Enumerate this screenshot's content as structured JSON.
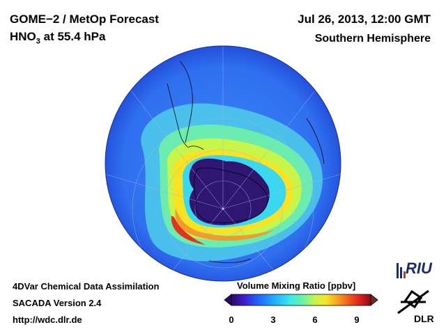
{
  "header": {
    "title_left": "GOME−2 / MetOp Forecast",
    "subtitle_left_pre": "HNO",
    "subtitle_left_sub": "3",
    "subtitle_left_post": " at 55.4 hPa",
    "title_right": "Jul 26, 2013, 12:00 GMT",
    "subtitle_right": "Southern Hemisphere"
  },
  "footer": {
    "line1": "4DVar Chemical Data Assimilation",
    "line2": "SACADA Version 2.4",
    "line3": "http://wdc.dlr.de"
  },
  "colorbar": {
    "title": "Volume Mixing Ratio [ppbv]",
    "ticks": [
      "0",
      "3",
      "6",
      "9"
    ],
    "range": [
      0,
      10
    ],
    "colors": [
      "#2a0a63",
      "#3f1bd1",
      "#1e6bff",
      "#22b5ff",
      "#3be8e8",
      "#6ff2a0",
      "#c8f54a",
      "#f7e324",
      "#f7a31c",
      "#f0561a",
      "#d91c1c",
      "#8a0c16"
    ]
  },
  "logos": {
    "riu": "RIU",
    "dlr": "DLR"
  },
  "map_colors": {
    "background_blue": "#2f70f2",
    "outer_blue": "#1f45d6",
    "cyan_belt": "#55d8ee",
    "yellow": "#f3e73a",
    "orange": "#f29a2c",
    "red": "#e1341f",
    "dark_core": "#2f1672",
    "outline": "#000000"
  }
}
